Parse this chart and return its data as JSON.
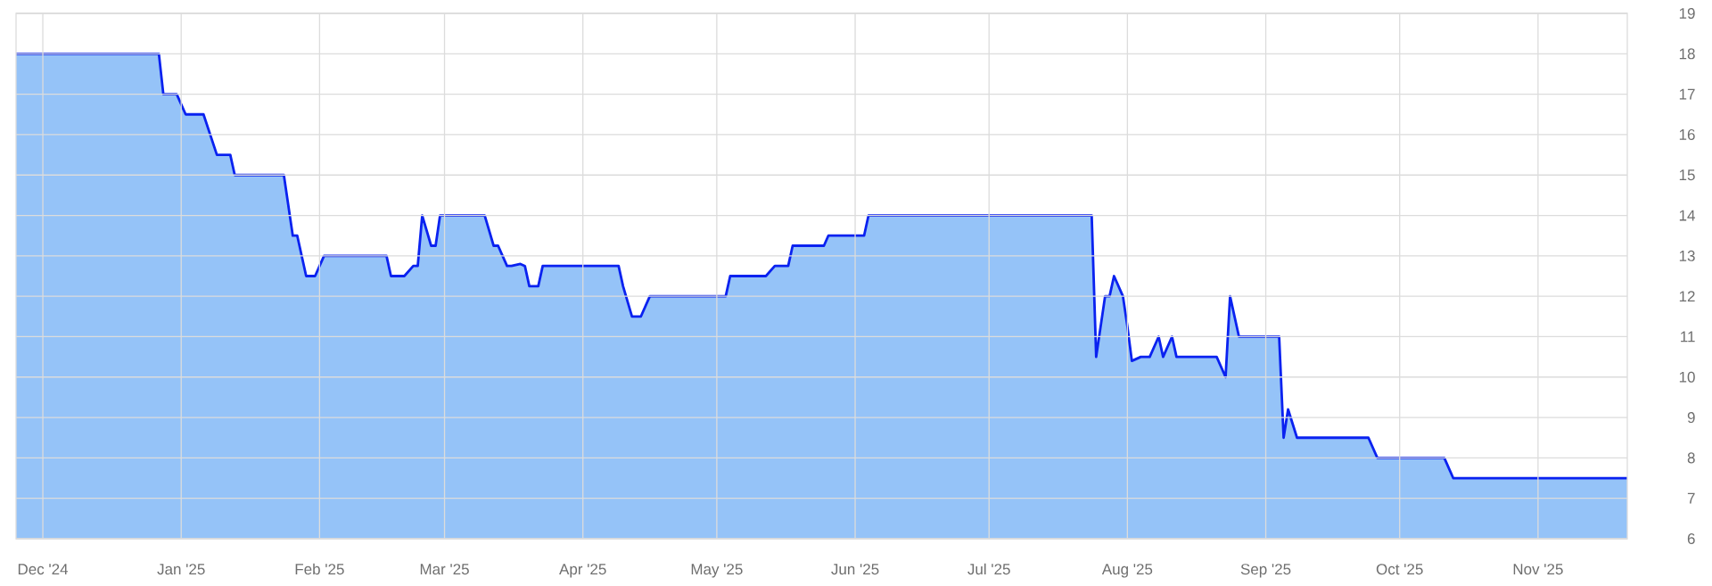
{
  "chart_data": {
    "type": "area",
    "x": [
      "2024-11-25",
      "2024-12-27",
      "2024-12-28",
      "2024-12-31",
      "2025-01-02",
      "2025-01-06",
      "2025-01-09",
      "2025-01-12",
      "2025-01-13",
      "2025-01-24",
      "2025-01-26",
      "2025-01-27",
      "2025-01-29",
      "2025-01-31",
      "2025-02-02",
      "2025-02-16",
      "2025-02-17",
      "2025-02-20",
      "2025-02-22",
      "2025-02-23",
      "2025-02-24",
      "2025-02-26",
      "2025-02-27",
      "2025-02-28",
      "2025-03-10",
      "2025-03-12",
      "2025-03-13",
      "2025-03-15",
      "2025-03-16",
      "2025-03-18",
      "2025-03-19",
      "2025-03-20",
      "2025-03-22",
      "2025-03-23",
      "2025-04-09",
      "2025-04-10",
      "2025-04-12",
      "2025-04-14",
      "2025-04-16",
      "2025-05-03",
      "2025-05-04",
      "2025-05-12",
      "2025-05-14",
      "2025-05-17",
      "2025-05-18",
      "2025-05-25",
      "2025-05-26",
      "2025-06-03",
      "2025-06-04",
      "2025-07-24",
      "2025-07-25",
      "2025-07-27",
      "2025-07-28",
      "2025-07-29",
      "2025-07-31",
      "2025-08-01",
      "2025-08-02",
      "2025-08-04",
      "2025-08-06",
      "2025-08-08",
      "2025-08-09",
      "2025-08-11",
      "2025-08-12",
      "2025-08-21",
      "2025-08-23",
      "2025-08-24",
      "2025-08-26",
      "2025-09-04",
      "2025-09-05",
      "2025-09-06",
      "2025-09-08",
      "2025-09-24",
      "2025-09-26",
      "2025-10-11",
      "2025-10-13",
      "2025-11-21"
    ],
    "series": [
      {
        "color": "#0a22f0",
        "values": [
          18,
          18,
          17,
          17,
          16.5,
          16.5,
          15.5,
          15.5,
          15,
          15,
          13.5,
          13.5,
          12.5,
          12.5,
          13,
          13,
          12.5,
          12.5,
          12.75,
          12.75,
          14,
          13.25,
          13.25,
          14,
          14,
          13.25,
          13.25,
          12.75,
          12.75,
          12.8,
          12.75,
          12.25,
          12.25,
          12.75,
          12.75,
          12.25,
          11.5,
          11.5,
          12,
          12,
          12.5,
          12.5,
          12.75,
          12.75,
          13.25,
          13.25,
          13.5,
          13.5,
          14,
          14,
          10.5,
          12,
          12,
          12.5,
          12,
          11.25,
          10.4,
          10.5,
          10.5,
          11,
          10.5,
          11,
          10.5,
          10.5,
          10,
          12,
          11,
          11,
          8.5,
          9.2,
          8.5,
          8.5,
          8,
          8,
          7.5,
          7.5
        ]
      }
    ],
    "xlim": [
      "2024-11-25",
      "2025-11-21"
    ],
    "xticks": [
      {
        "value": "2024-12-01",
        "label": "Dec '24"
      },
      {
        "value": "2025-01-01",
        "label": "Jan '25"
      },
      {
        "value": "2025-02-01",
        "label": "Feb '25"
      },
      {
        "value": "2025-03-01",
        "label": "Mar '25"
      },
      {
        "value": "2025-04-01",
        "label": "Apr '25"
      },
      {
        "value": "2025-05-01",
        "label": "May '25"
      },
      {
        "value": "2025-06-01",
        "label": "Jun '25"
      },
      {
        "value": "2025-07-01",
        "label": "Jul '25"
      },
      {
        "value": "2025-08-01",
        "label": "Aug '25"
      },
      {
        "value": "2025-09-01",
        "label": "Sep '25"
      },
      {
        "value": "2025-10-01",
        "label": "Oct '25"
      },
      {
        "value": "2025-11-01",
        "label": "Nov '25"
      }
    ],
    "ylim": [
      6,
      19
    ],
    "yticks": [
      6,
      7,
      8,
      9,
      10,
      11,
      12,
      13,
      14,
      15,
      16,
      17,
      18,
      19
    ],
    "grid": true
  }
}
